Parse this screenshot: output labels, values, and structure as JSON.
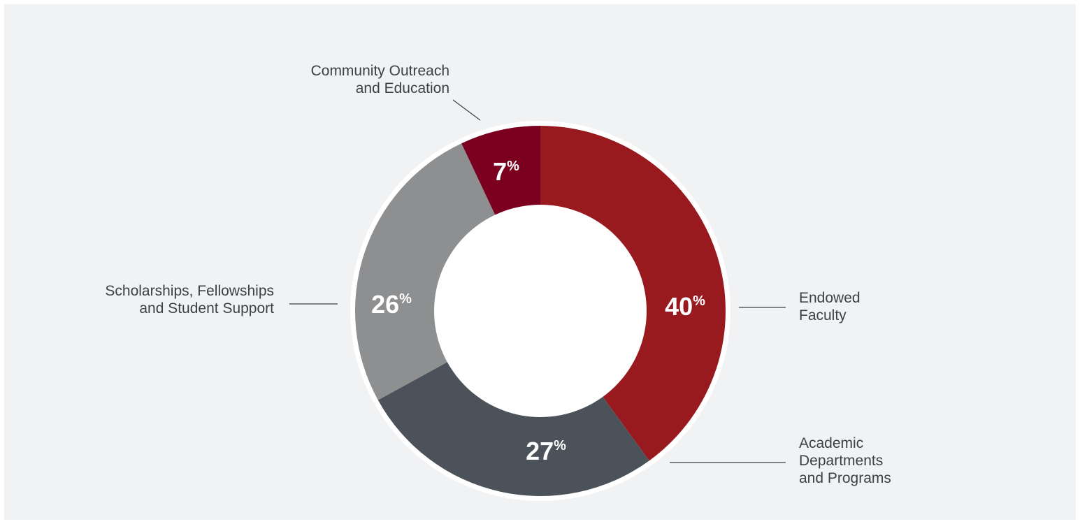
{
  "chart_data": {
    "type": "pie",
    "donut": true,
    "slices": [
      {
        "label": "Endowed Faculty",
        "label_lines": [
          "Endowed",
          "Faculty"
        ],
        "value": 40,
        "value_label": "40",
        "unit": "%",
        "color": "#981a1f"
      },
      {
        "label": "Academic Departments and Programs",
        "label_lines": [
          "Academic",
          "Departments",
          "and Programs"
        ],
        "value": 27,
        "value_label": "27",
        "unit": "%",
        "color": "#4c5259"
      },
      {
        "label": "Scholarships, Fellowships and Student Support",
        "label_lines": [
          "Scholarships, Fellowships",
          "and Student Support"
        ],
        "value": 26,
        "value_label": "26",
        "unit": "%",
        "color": "#8e8f91"
      },
      {
        "label": "Community Outreach and Education",
        "label_lines": [
          "Community Outreach",
          "and Education"
        ],
        "value": 7,
        "value_label": "7",
        "unit": "%",
        "color": "#7b0020"
      }
    ],
    "title": "",
    "legend": "none",
    "colors": {
      "background": "#f1f2f4",
      "separator": "#ffffff",
      "label_text": "#3c4047",
      "leader_line": "#3c4047"
    }
  }
}
